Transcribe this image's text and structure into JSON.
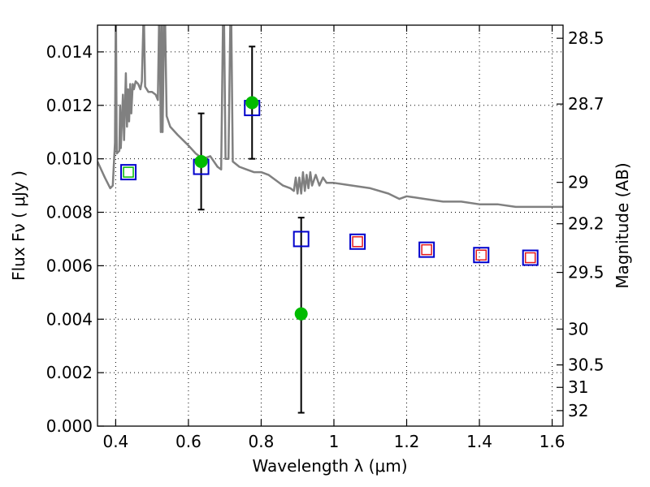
{
  "chart_data": {
    "type": "scatter",
    "xlabel": "Wavelength  λ (μm)",
    "ylabel": "Flux  Fν  ( μJy )",
    "ylabel_right": "Magnitude (AB)",
    "xlim": [
      0.35,
      1.63
    ],
    "ylim": [
      0.0,
      0.015
    ],
    "grid": true,
    "x_ticks": [
      0.4,
      0.6,
      0.8,
      1.0,
      1.2,
      1.4,
      1.6
    ],
    "x_tick_labels": [
      "0.4",
      "0.6",
      "0.8",
      "1",
      "1.2",
      "1.4",
      "1.6"
    ],
    "y_ticks": [
      0.0,
      0.002,
      0.004,
      0.006,
      0.008,
      0.01,
      0.012,
      0.014
    ],
    "y_tick_labels": [
      "0.000",
      "0.002",
      "0.004",
      "0.006",
      "0.008",
      "0.010",
      "0.012",
      "0.014"
    ],
    "right_ticks": [
      {
        "flux": 0.01451,
        "label": "28.5"
      },
      {
        "flux": 0.01205,
        "label": "28.7"
      },
      {
        "flux": 0.00912,
        "label": "29"
      },
      {
        "flux": 0.00757,
        "label": "29.2"
      },
      {
        "flux": 0.00575,
        "label": "29.5"
      },
      {
        "flux": 0.00363,
        "label": "30"
      },
      {
        "flux": 0.00229,
        "label": "30.5"
      },
      {
        "flux": 0.00145,
        "label": "31"
      },
      {
        "flux": 0.00058,
        "label": "32"
      }
    ],
    "series": [
      {
        "type": "line",
        "color": "#808080",
        "points": [
          [
            0.35,
            0.0099
          ],
          [
            0.37,
            0.0093
          ],
          [
            0.385,
            0.0089
          ],
          [
            0.392,
            0.009
          ],
          [
            0.398,
            0.0106
          ],
          [
            0.4,
            0.015
          ],
          [
            0.401,
            0.015
          ],
          [
            0.403,
            0.0102
          ],
          [
            0.41,
            0.0103
          ],
          [
            0.412,
            0.012
          ],
          [
            0.414,
            0.0104
          ],
          [
            0.42,
            0.0124
          ],
          [
            0.423,
            0.0107
          ],
          [
            0.428,
            0.0132
          ],
          [
            0.431,
            0.0112
          ],
          [
            0.434,
            0.0126
          ],
          [
            0.437,
            0.0114
          ],
          [
            0.44,
            0.0128
          ],
          [
            0.443,
            0.0117
          ],
          [
            0.447,
            0.0128
          ],
          [
            0.45,
            0.0126
          ],
          [
            0.455,
            0.0129
          ],
          [
            0.462,
            0.0128
          ],
          [
            0.468,
            0.0126
          ],
          [
            0.472,
            0.0129
          ],
          [
            0.476,
            0.015
          ],
          [
            0.478,
            0.015
          ],
          [
            0.481,
            0.0127
          ],
          [
            0.49,
            0.0125
          ],
          [
            0.5,
            0.0125
          ],
          [
            0.51,
            0.0124
          ],
          [
            0.516,
            0.0122
          ],
          [
            0.519,
            0.015
          ],
          [
            0.521,
            0.015
          ],
          [
            0.524,
            0.011
          ],
          [
            0.527,
            0.015
          ],
          [
            0.529,
            0.011
          ],
          [
            0.533,
            0.015
          ],
          [
            0.536,
            0.015
          ],
          [
            0.54,
            0.0116
          ],
          [
            0.55,
            0.0112
          ],
          [
            0.57,
            0.0109
          ],
          [
            0.6,
            0.0105
          ],
          [
            0.62,
            0.0102
          ],
          [
            0.64,
            0.01
          ],
          [
            0.66,
            0.0101
          ],
          [
            0.68,
            0.0097
          ],
          [
            0.69,
            0.0096
          ],
          [
            0.695,
            0.015
          ],
          [
            0.698,
            0.015
          ],
          [
            0.702,
            0.01
          ],
          [
            0.71,
            0.01
          ],
          [
            0.715,
            0.015
          ],
          [
            0.718,
            0.015
          ],
          [
            0.722,
            0.0099
          ],
          [
            0.74,
            0.0097
          ],
          [
            0.76,
            0.0096
          ],
          [
            0.78,
            0.0095
          ],
          [
            0.8,
            0.0095
          ],
          [
            0.82,
            0.0094
          ],
          [
            0.84,
            0.0092
          ],
          [
            0.86,
            0.009
          ],
          [
            0.88,
            0.0089
          ],
          [
            0.89,
            0.0088
          ],
          [
            0.895,
            0.0093
          ],
          [
            0.9,
            0.0087
          ],
          [
            0.905,
            0.0093
          ],
          [
            0.91,
            0.0087
          ],
          [
            0.915,
            0.0095
          ],
          [
            0.92,
            0.0088
          ],
          [
            0.925,
            0.0094
          ],
          [
            0.93,
            0.0089
          ],
          [
            0.935,
            0.0095
          ],
          [
            0.94,
            0.009
          ],
          [
            0.95,
            0.0094
          ],
          [
            0.96,
            0.009
          ],
          [
            0.97,
            0.0093
          ],
          [
            0.98,
            0.0091
          ],
          [
            1.0,
            0.0091
          ],
          [
            1.05,
            0.009
          ],
          [
            1.1,
            0.0089
          ],
          [
            1.15,
            0.0087
          ],
          [
            1.18,
            0.0085
          ],
          [
            1.2,
            0.0086
          ],
          [
            1.25,
            0.0085
          ],
          [
            1.3,
            0.0084
          ],
          [
            1.35,
            0.0084
          ],
          [
            1.4,
            0.0083
          ],
          [
            1.45,
            0.0083
          ],
          [
            1.5,
            0.0082
          ],
          [
            1.55,
            0.0082
          ],
          [
            1.6,
            0.0082
          ],
          [
            1.63,
            0.0082
          ]
        ]
      },
      {
        "type": "errorbar",
        "color": "#000000",
        "points": [
          {
            "x": 0.635,
            "low": 0.0081,
            "high": 0.0117
          },
          {
            "x": 0.775,
            "low": 0.01,
            "high": 0.0142
          },
          {
            "x": 0.91,
            "low": 0.0005,
            "high": 0.0078
          }
        ]
      },
      {
        "type": "marker-square-open",
        "color": "#0000cc",
        "points": [
          [
            0.435,
            0.0095
          ],
          [
            0.635,
            0.0097
          ],
          [
            0.775,
            0.0119
          ],
          [
            0.91,
            0.007
          ],
          [
            1.065,
            0.0069
          ],
          [
            1.255,
            0.0066
          ],
          [
            1.405,
            0.0064
          ],
          [
            1.54,
            0.0063
          ]
        ]
      },
      {
        "type": "marker-square-open",
        "color": "#e41a1c",
        "points": [
          [
            1.065,
            0.0069
          ],
          [
            1.255,
            0.0066
          ],
          [
            1.405,
            0.0064
          ],
          [
            1.54,
            0.0063
          ]
        ]
      },
      {
        "type": "marker-square-open",
        "color": "#00bb00",
        "points": [
          [
            0.435,
            0.0095
          ]
        ]
      },
      {
        "type": "marker-circle-filled",
        "color": "#00bb00",
        "points": [
          [
            0.635,
            0.0099
          ],
          [
            0.775,
            0.0121
          ],
          [
            0.91,
            0.0042
          ]
        ]
      }
    ]
  }
}
